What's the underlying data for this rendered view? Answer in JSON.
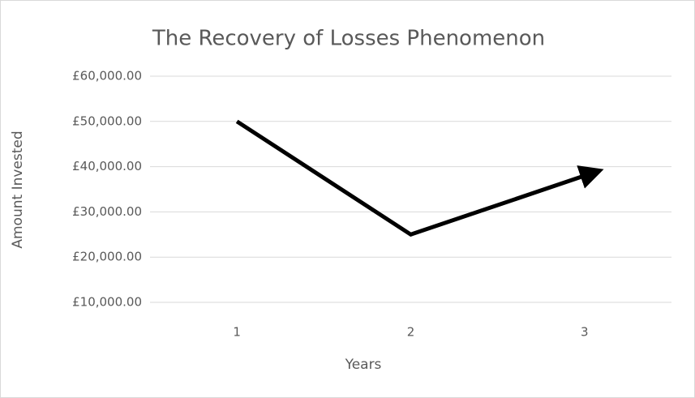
{
  "chart_data": {
    "type": "line",
    "title": "The Recovery of Losses Phenomenon",
    "x_label": "Years",
    "y_label": "Amount Invested",
    "categories": [
      "1",
      "2",
      "3"
    ],
    "series": [
      {
        "name": "Amount Invested",
        "color": "#000000",
        "values": [
          50000,
          25000,
          38000
        ]
      }
    ],
    "ylim": [
      10000,
      60000
    ],
    "yticks": [
      {
        "value": 10000,
        "label": "£10,000.00"
      },
      {
        "value": 20000,
        "label": "£20,000.00"
      },
      {
        "value": 30000,
        "label": "£30,000.00"
      },
      {
        "value": 40000,
        "label": "£40,000.00"
      },
      {
        "value": 50000,
        "label": "£50,000.00"
      },
      {
        "value": 60000,
        "label": "£60,000.00"
      }
    ],
    "grid": true,
    "end_arrow": true
  }
}
